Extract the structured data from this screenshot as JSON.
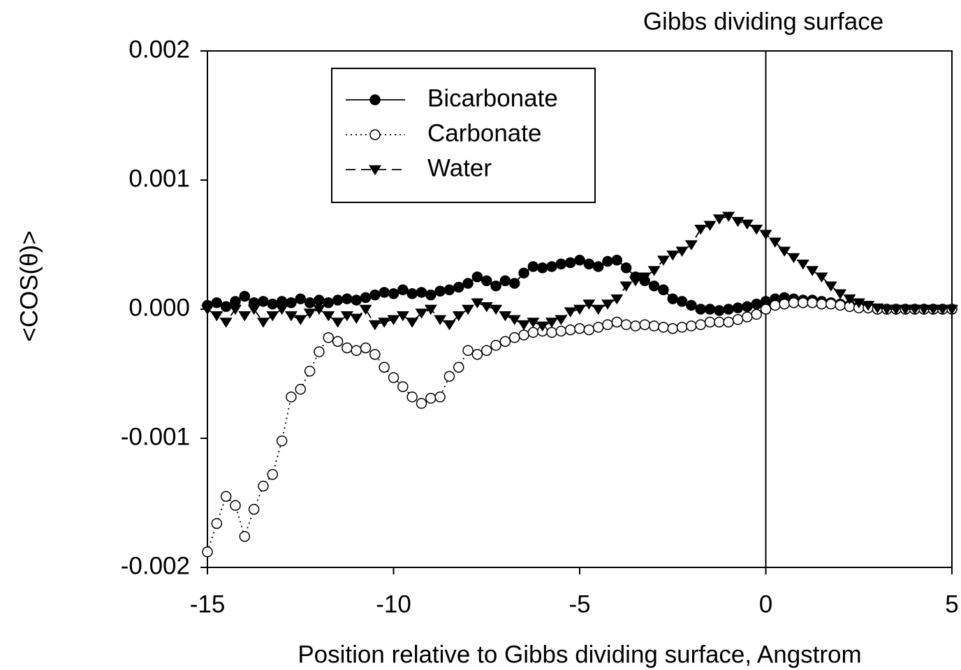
{
  "chart_data": {
    "type": "line",
    "xlabel": "Position relative to Gibbs dividing surface, Angstrom",
    "ylabel": "<COS(θ)>",
    "annotation": {
      "text": "Gibbs dividing surface",
      "x": 0
    },
    "xlim": [
      -15,
      5
    ],
    "xticks": [
      -15,
      -10,
      -5,
      0,
      5
    ],
    "ylim": [
      -0.002,
      0.002
    ],
    "yticks": [
      -0.002,
      -0.001,
      {
        "value": 0,
        "label": "0.000"
      },
      0.001,
      0.002
    ],
    "legend": "upper left",
    "x": [
      -15,
      -14.75,
      -14.5,
      -14.25,
      -14,
      -13.75,
      -13.5,
      -13.25,
      -13,
      -12.75,
      -12.5,
      -12.25,
      -12,
      -11.75,
      -11.5,
      -11.25,
      -11,
      -10.75,
      -10.5,
      -10.25,
      -10,
      -9.75,
      -9.5,
      -9.25,
      -9,
      -8.75,
      -8.5,
      -8.25,
      -8,
      -7.75,
      -7.5,
      -7.25,
      -7,
      -6.75,
      -6.5,
      -6.25,
      -6,
      -5.75,
      -5.5,
      -5.25,
      -5,
      -4.75,
      -4.5,
      -4.25,
      -4,
      -3.75,
      -3.5,
      -3.25,
      -3,
      -2.75,
      -2.5,
      -2.25,
      -2,
      -1.75,
      -1.5,
      -1.25,
      -1,
      -0.75,
      -0.5,
      -0.25,
      0,
      0.25,
      0.5,
      0.75,
      1,
      1.25,
      1.5,
      1.75,
      2,
      2.25,
      2.5,
      2.75,
      3,
      3.25,
      3.5,
      3.75,
      4,
      4.25,
      4.5,
      4.75,
      5
    ],
    "series": [
      {
        "name": "Bicarbonate",
        "color": "#000000",
        "dash": "solid",
        "marker": "circle-filled",
        "values": [
          3e-05,
          5e-05,
          2e-05,
          6e-05,
          0.0001,
          5e-05,
          6e-05,
          4e-05,
          6e-05,
          5e-05,
          8e-05,
          5e-05,
          7e-05,
          5e-05,
          7e-05,
          8e-05,
          7e-05,
          9e-05,
          0.00011,
          0.00013,
          0.00012,
          0.00015,
          0.00012,
          0.00013,
          0.00011,
          0.00014,
          0.00015,
          0.00017,
          0.0002,
          0.00025,
          0.00022,
          0.00018,
          0.00022,
          0.0002,
          0.00028,
          0.00033,
          0.00032,
          0.00033,
          0.00035,
          0.00036,
          0.00038,
          0.00035,
          0.00033,
          0.00037,
          0.00038,
          0.00032,
          0.00025,
          0.00022,
          0.00018,
          0.00015,
          8e-05,
          6e-05,
          3e-05,
          0,
          0,
          -1e-05,
          0,
          1e-05,
          2e-05,
          4e-05,
          6e-05,
          8e-05,
          9e-05,
          8e-05,
          7e-05,
          7e-05,
          6e-05,
          5e-05,
          4e-05,
          3e-05,
          2e-05,
          1e-05,
          0,
          0,
          0,
          0,
          0,
          0,
          0,
          0,
          0
        ]
      },
      {
        "name": "Carbonate",
        "color": "#000000",
        "dash": "dotted",
        "marker": "circle-open",
        "values": [
          -0.00188,
          -0.00166,
          -0.00145,
          -0.00152,
          -0.00176,
          -0.00155,
          -0.00137,
          -0.00128,
          -0.00102,
          -0.00068,
          -0.00062,
          -0.00048,
          -0.00033,
          -0.00022,
          -0.00025,
          -0.0003,
          -0.00032,
          -0.0003,
          -0.00035,
          -0.00045,
          -0.00053,
          -0.0006,
          -0.00068,
          -0.00073,
          -0.00069,
          -0.00068,
          -0.00052,
          -0.00045,
          -0.00032,
          -0.00035,
          -0.00032,
          -0.00028,
          -0.00025,
          -0.00022,
          -0.0002,
          -0.00018,
          -0.00017,
          -0.00018,
          -0.00017,
          -0.00016,
          -0.00015,
          -0.00016,
          -0.00014,
          -0.00012,
          -0.0001,
          -0.00012,
          -0.00013,
          -0.00012,
          -0.00013,
          -0.00014,
          -0.00015,
          -0.00014,
          -0.00013,
          -0.00012,
          -0.0001,
          -0.0001,
          -0.0001,
          -8e-05,
          -6e-05,
          -4e-05,
          0,
          3e-05,
          4e-05,
          5e-05,
          5e-05,
          5e-05,
          4e-05,
          4e-05,
          3e-05,
          2e-05,
          1e-05,
          1e-05,
          0,
          0,
          0,
          0,
          0,
          0,
          0,
          0,
          0
        ]
      },
      {
        "name": "Water",
        "color": "#000000",
        "dash": "dashed",
        "marker": "triangle-down",
        "values": [
          0,
          -5e-05,
          -0.0001,
          0,
          -5e-05,
          0,
          -0.0001,
          -5e-05,
          0,
          -5e-05,
          -8e-05,
          -3e-05,
          0,
          -5e-05,
          -0.0001,
          -5e-05,
          -7e-05,
          0,
          -0.00012,
          -0.0001,
          -8e-05,
          -5e-05,
          -0.0001,
          -3e-05,
          0,
          -8e-05,
          -0.00012,
          -5e-05,
          0,
          5e-05,
          2e-05,
          0,
          -5e-05,
          -8e-05,
          -0.00012,
          -0.0001,
          -0.00013,
          -0.0001,
          -8e-05,
          -2e-05,
          0,
          4e-05,
          0,
          4e-05,
          8e-05,
          0.00018,
          0.00022,
          0.00025,
          0.0003,
          0.00038,
          0.00042,
          0.00045,
          0.0005,
          0.00062,
          0.00065,
          0.0007,
          0.00072,
          0.00068,
          0.00066,
          0.00062,
          0.00058,
          0.00052,
          0.00045,
          0.0004,
          0.00035,
          0.0003,
          0.00025,
          0.00018,
          0.00012,
          8e-05,
          5e-05,
          3e-05,
          1e-05,
          0,
          0,
          0,
          0,
          0,
          0,
          0,
          0
        ]
      }
    ]
  }
}
